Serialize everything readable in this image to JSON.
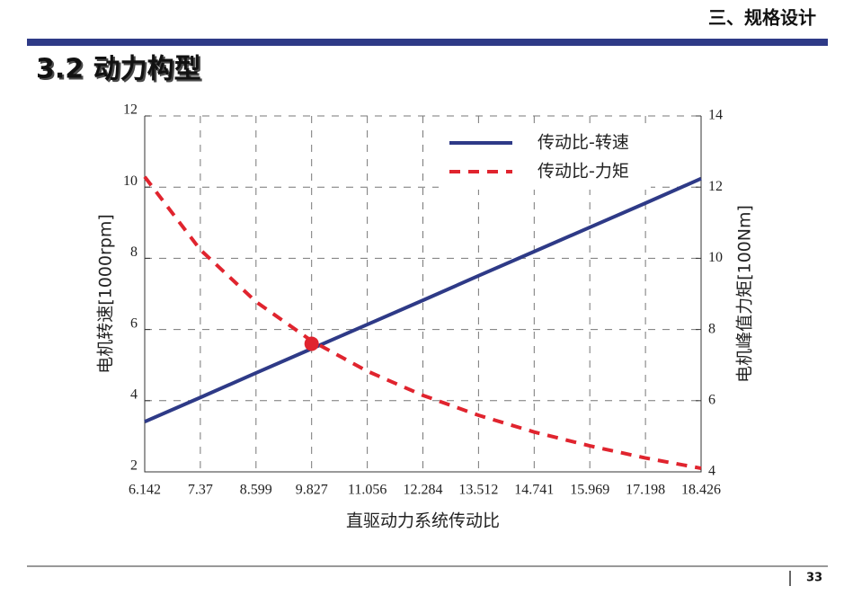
{
  "header": {
    "section": "三、规格设计",
    "title": "3.2 动力构型"
  },
  "chart_data": {
    "type": "line",
    "x": [
      6.142,
      7.37,
      8.599,
      9.827,
      11.056,
      12.284,
      13.512,
      14.741,
      15.969,
      17.198,
      18.426
    ],
    "series": [
      {
        "name": "传动比-转速",
        "color": "#2e3a87",
        "dashed": false,
        "values": [
          3.41,
          4.09,
          4.78,
          5.46,
          6.14,
          6.82,
          7.51,
          8.19,
          8.87,
          9.55,
          10.24
        ]
      },
      {
        "name": "传动比-力矩",
        "color": "#e0242e",
        "dashed": true,
        "axis": "y2",
        "values": [
          12.29,
          10.24,
          8.78,
          7.68,
          6.83,
          6.15,
          5.59,
          5.12,
          4.73,
          4.39,
          4.1
        ]
      }
    ],
    "marker": {
      "x": 9.827,
      "y": 5.6,
      "color": "#e0242e"
    },
    "xlabel": "直驱动力系统传动比",
    "ylabel": "电机转速[1000rpm]",
    "y2label": "电机峰值力矩[100Nm]",
    "xlim": [
      6.142,
      18.426
    ],
    "xticks": [
      6.142,
      7.37,
      8.599,
      9.827,
      11.056,
      12.284,
      13.512,
      14.741,
      15.969,
      17.198,
      18.426
    ],
    "ylim": [
      2,
      12
    ],
    "yticks": [
      2,
      4,
      6,
      8,
      10,
      12
    ],
    "y2lim": [
      4,
      14
    ],
    "y2ticks": [
      4,
      6,
      8,
      10,
      12,
      14
    ],
    "grid": true,
    "legend": "top"
  },
  "footer": {
    "page": "33"
  }
}
